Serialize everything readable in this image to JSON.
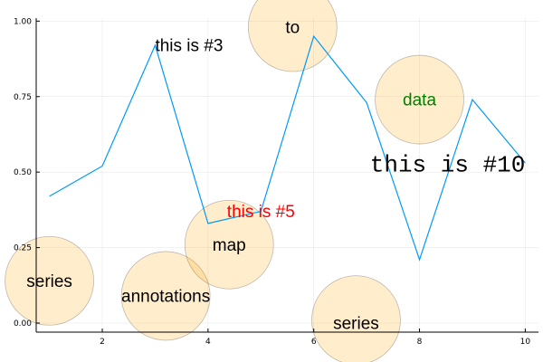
{
  "chart_data": {
    "type": "line",
    "title": "",
    "xlabel": "",
    "ylabel": "",
    "xlim": [
      0.75,
      10.25
    ],
    "ylim": [
      -0.03,
      1.01
    ],
    "grid": true,
    "legend": "none",
    "x_ticks": [
      2,
      4,
      6,
      8,
      10
    ],
    "y_ticks": [
      0.0,
      0.25,
      0.5,
      0.75,
      1.0
    ],
    "y_tick_labels": [
      "0.00",
      "0.25",
      "0.50",
      "0.75",
      "1.00"
    ],
    "series": [
      {
        "color": "#009af9",
        "x": [
          1,
          2,
          3,
          4,
          5,
          6,
          7,
          8,
          9,
          10
        ],
        "y": [
          0.42,
          0.52,
          0.92,
          0.33,
          0.37,
          0.95,
          0.73,
          0.21,
          0.74,
          0.53
        ]
      }
    ],
    "markers": [
      {
        "x": 1.0,
        "y": 0.14,
        "color": "#ffa500"
      },
      {
        "x": 3.2,
        "y": 0.09,
        "color": "#ffa500"
      },
      {
        "x": 4.4,
        "y": 0.26,
        "color": "#ffa500"
      },
      {
        "x": 5.6,
        "y": 0.98,
        "color": "#ffa500"
      },
      {
        "x": 6.8,
        "y": 0.01,
        "color": "#ffa500"
      },
      {
        "x": 8.0,
        "y": 0.74,
        "color": "#ffa500"
      }
    ],
    "annotations": [
      {
        "x": 3.0,
        "y": 0.92,
        "text": "this is #3",
        "color": "#000000",
        "size": "medium",
        "anchor": "start",
        "font": "sans"
      },
      {
        "x": 5.0,
        "y": 0.37,
        "text": "this is #5",
        "color": "#ff0000",
        "size": "medium",
        "anchor": "middle",
        "font": "sans"
      },
      {
        "x": 10.0,
        "y": 0.53,
        "text": "this is #10",
        "color": "#000000",
        "size": "large",
        "anchor": "end",
        "font": "mono"
      },
      {
        "x": 1.0,
        "y": 0.14,
        "text": "series",
        "color": "#000000",
        "size": "medium",
        "anchor": "middle",
        "font": "sans"
      },
      {
        "x": 3.2,
        "y": 0.09,
        "text": "annotations",
        "color": "#000000",
        "size": "medium",
        "anchor": "middle",
        "font": "sans"
      },
      {
        "x": 4.4,
        "y": 0.26,
        "text": "map",
        "color": "#000000",
        "size": "medium",
        "anchor": "middle",
        "font": "sans"
      },
      {
        "x": 5.6,
        "y": 0.98,
        "text": "to",
        "color": "#000000",
        "size": "medium",
        "anchor": "middle",
        "font": "sans"
      },
      {
        "x": 6.8,
        "y": 0.0,
        "text": "series",
        "color": "#000000",
        "size": "medium",
        "anchor": "middle",
        "font": "sans"
      },
      {
        "x": 8.0,
        "y": 0.74,
        "text": "data",
        "color": "#008000",
        "size": "medium",
        "anchor": "middle",
        "font": "sans"
      }
    ]
  }
}
